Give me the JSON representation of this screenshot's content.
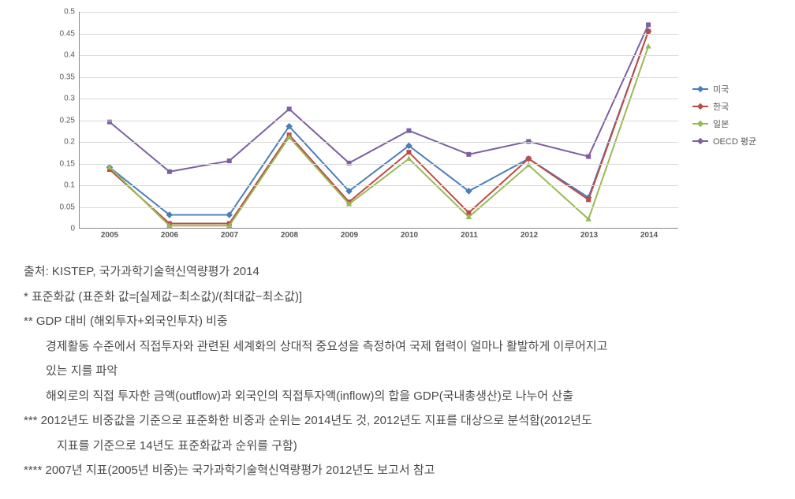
{
  "chart": {
    "type": "line",
    "categories": [
      "2005",
      "2006",
      "2007",
      "2008",
      "2009",
      "2010",
      "2011",
      "2012",
      "2013",
      "2014"
    ],
    "ylim": [
      0,
      0.5
    ],
    "ytick_step": 0.05,
    "yticks": [
      "0",
      "0.05",
      "0.1",
      "0.15",
      "0.2",
      "0.25",
      "0.3",
      "0.35",
      "0.4",
      "0.45",
      "0.5"
    ],
    "grid_color": "#d9d9d9",
    "axis_color": "#888888",
    "background_color": "#ffffff",
    "tick_fontsize": 10,
    "series": [
      {
        "name": "미국",
        "color": "#4a7ebb",
        "marker": "diamond",
        "values": [
          0.14,
          0.03,
          0.03,
          0.235,
          0.085,
          0.19,
          0.085,
          0.16,
          0.07,
          0.455
        ]
      },
      {
        "name": "한국",
        "color": "#be4b48",
        "marker": "square",
        "values": [
          0.135,
          0.01,
          0.01,
          0.215,
          0.06,
          0.175,
          0.035,
          0.16,
          0.065,
          0.455
        ]
      },
      {
        "name": "일본",
        "color": "#98b954",
        "marker": "triangle",
        "values": [
          0.14,
          0.005,
          0.005,
          0.21,
          0.055,
          0.16,
          0.025,
          0.145,
          0.02,
          0.42
        ]
      },
      {
        "name": "OECD 평균",
        "color": "#7d60a0",
        "marker": "square",
        "values": [
          0.245,
          0.13,
          0.155,
          0.275,
          0.15,
          0.225,
          0.17,
          0.2,
          0.165,
          0.47
        ]
      }
    ],
    "line_width": 2,
    "marker_size": 6
  },
  "notes": {
    "source": "출처: KISTEP, 국가과학기술혁신역량평가 2014",
    "n1": "* 표준화값 (표준화 값=[실제값−최소값)/(최대값−최소값)]",
    "n2a": "** GDP 대비 (해외투자+외국인투자) 비중",
    "n2b": "경제활동 수준에서 직접투자와 관련된 세계화의 상대적 중요성을 측정하여 국제 협력이 얼마나 활발하게 이루어지고",
    "n2c": "있는 지를 파악",
    "n2d": "해외로의 직접 투자한 금액(outflow)과 외국인의 직접투자액(inflow)의 합을 GDP(국내총생산)로 나누어 산출",
    "n3a": "*** 2012년도 비중값을 기준으로 표준화한 비중과 순위는 2014년도 것, 2012년도 지표를 대상으로 분석함(2012년도",
    "n3b": "지표를 기준으로 14년도 표준화값과 순위를 구함)",
    "n4": "**** 2007년 지표(2005년 비중)는 국가과학기술혁신역량평가 2012년도 보고서 참고"
  }
}
